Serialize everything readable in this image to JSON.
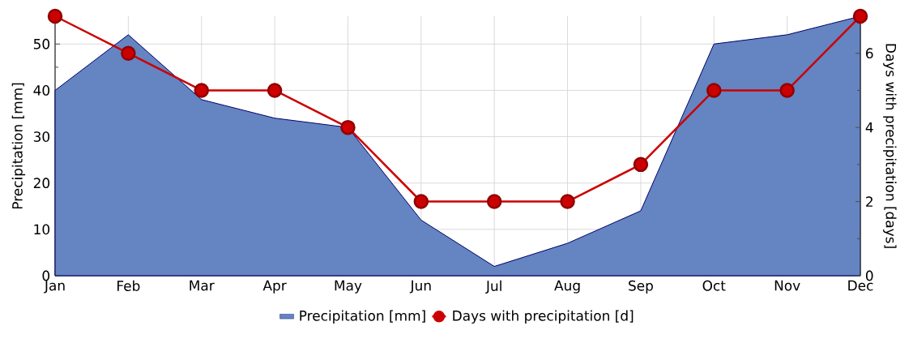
{
  "chart_data": {
    "type": "area",
    "categories": [
      "Jan",
      "Feb",
      "Mar",
      "Apr",
      "May",
      "Jun",
      "Jul",
      "Aug",
      "Sep",
      "Oct",
      "Nov",
      "Dec"
    ],
    "ylabel": "Precipitation [mm]",
    "y2label": "Days with precipitation [days]",
    "ylim": [
      0,
      56
    ],
    "yticks": [
      0,
      10,
      20,
      30,
      40,
      50
    ],
    "y2lim": [
      0,
      7
    ],
    "y2ticks": [
      0,
      2,
      4,
      6
    ],
    "grid": true,
    "legend": "bottom",
    "series": [
      {
        "name": "Precipitation [mm]",
        "color": "#6484c2",
        "values": [
          40,
          52,
          38,
          34,
          32,
          12,
          2,
          7,
          14,
          50,
          52,
          56
        ]
      },
      {
        "name": "Days with precipitation [d]",
        "type": "line",
        "axis": "y2",
        "marker": "circle",
        "line_style": "solid",
        "color": "#cc0000",
        "values": [
          7,
          6,
          5,
          5,
          4,
          2,
          2,
          2,
          3,
          5,
          5,
          7
        ]
      }
    ]
  }
}
